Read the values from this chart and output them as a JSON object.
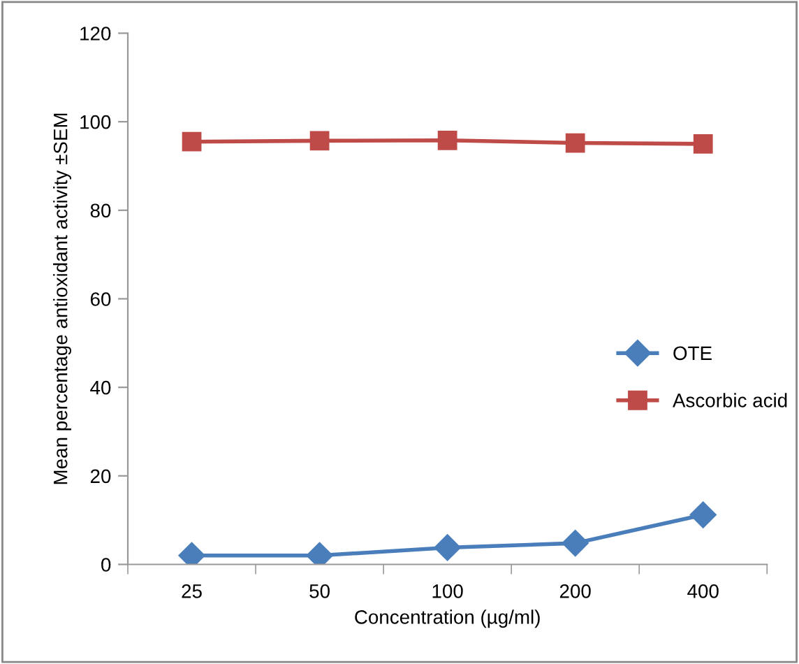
{
  "chart_data": {
    "type": "line",
    "xlabel": "Concentration (µg/ml)",
    "ylabel": "Mean percentage antioxidant activity ±SEM",
    "categories": [
      "25",
      "50",
      "100",
      "200",
      "400"
    ],
    "series": [
      {
        "name": "OTE",
        "color": "#4a7ebb",
        "marker": "diamond",
        "values": [
          2.0,
          2.0,
          3.8,
          4.8,
          11.2
        ]
      },
      {
        "name": "Ascorbic acid",
        "color": "#be4b48",
        "marker": "square",
        "values": [
          95.5,
          95.7,
          95.8,
          95.2,
          95.0
        ]
      }
    ],
    "ylim": [
      0,
      120
    ],
    "yticks": [
      0,
      20,
      40,
      60,
      80,
      100,
      120
    ],
    "grid": false,
    "legend": "right"
  }
}
